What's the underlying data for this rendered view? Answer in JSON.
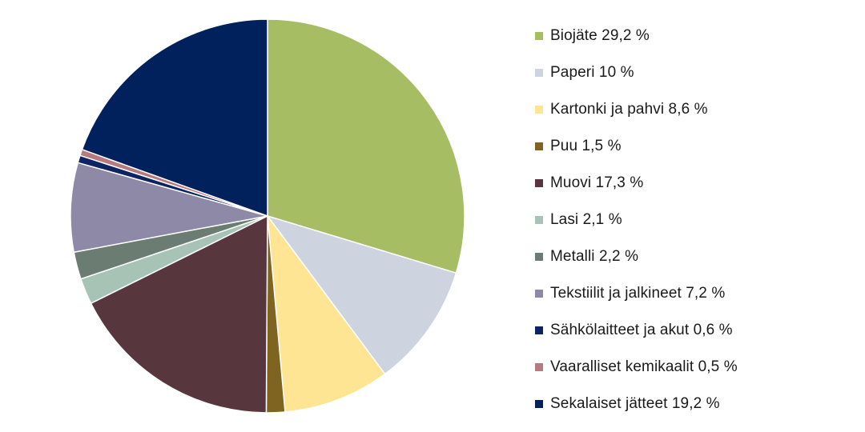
{
  "chart_data": {
    "type": "pie",
    "title": "",
    "slices": [
      {
        "label": "Biojäte 29,2 %",
        "value": 29.2,
        "color": "#a7bd64"
      },
      {
        "label": "Paperi 10 %",
        "value": 10.0,
        "color": "#cdd3df"
      },
      {
        "label": "Kartonki ja pahvi 8,6 %",
        "value": 8.6,
        "color": "#fde594"
      },
      {
        "label": "Puu 1,5 %",
        "value": 1.5,
        "color": "#7e6420"
      },
      {
        "label": "Muovi 17,3 %",
        "value": 17.3,
        "color": "#57373d"
      },
      {
        "label": "Lasi 2,1 %",
        "value": 2.1,
        "color": "#a6c3b5"
      },
      {
        "label": "Metalli 2,2 %",
        "value": 2.2,
        "color": "#6b7d72"
      },
      {
        "label": "Tekstiilit ja jalkineet 7,2 %",
        "value": 7.2,
        "color": "#8d89a7"
      },
      {
        "label": "Sähkölaitteet ja akut 0,6 %",
        "value": 0.6,
        "color": "#0d2463"
      },
      {
        "label": "Vaaralliset kemikaalit 0,5 %",
        "value": 0.5,
        "color": "#b77a80"
      },
      {
        "label": "Sekalaiset jätteet 19,2 %",
        "value": 19.2,
        "color": "#00215b"
      }
    ],
    "legend_position": "right"
  }
}
